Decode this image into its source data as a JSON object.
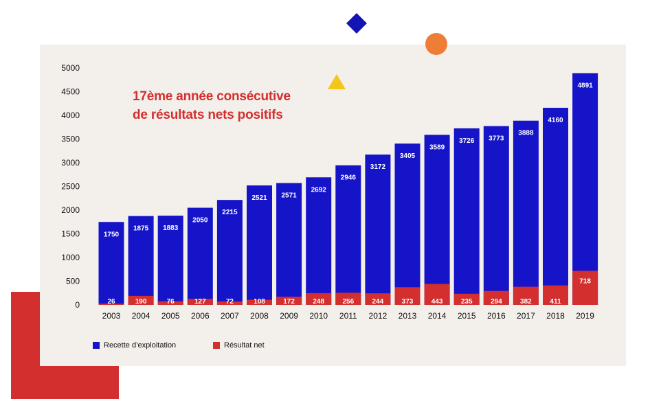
{
  "colors": {
    "revenue": "#1614c8",
    "net": "#d32f2f",
    "panel": "#f3efea",
    "red_block": "#d32f2f",
    "diamond": "#1414b4",
    "circle": "#ee7d37",
    "triangle": "#f5c518",
    "headline": "#d32f2f"
  },
  "headline": {
    "line1": "17ème année consécutive",
    "line2": "de résultats nets positifs"
  },
  "chart_data": {
    "type": "bar",
    "grid": false,
    "legend_position": "bottom-left",
    "ylim": [
      0,
      5000
    ],
    "yticks": [
      "0",
      "500",
      "1000",
      "1500",
      "2000",
      "2500",
      "3000",
      "3500",
      "4000",
      "4500",
      "5000"
    ],
    "categories": [
      "2003",
      "2004",
      "2005",
      "2006",
      "2007",
      "2008",
      "2009",
      "2010",
      "2011",
      "2012",
      "2013",
      "2014",
      "2015",
      "2016",
      "2017",
      "2018",
      "2019"
    ],
    "series": [
      {
        "name": "Recette d'exploitation",
        "values": [
          1750,
          1875,
          1883,
          2050,
          2215,
          2521,
          2571,
          2692,
          2946,
          3172,
          3405,
          3589,
          3726,
          3773,
          3888,
          4160,
          4891
        ],
        "labels": [
          "1750",
          "1875",
          "1883",
          "2050",
          "2215",
          "2521",
          "2571",
          "2692",
          "2946",
          "3172",
          "3405",
          "3589",
          "3726",
          "3773",
          "3888",
          "4160",
          "4891"
        ]
      },
      {
        "name": "Résultat net",
        "values": [
          26,
          190,
          76,
          127,
          72,
          108,
          172,
          248,
          256,
          244,
          373,
          443,
          235,
          294,
          382,
          411,
          718
        ],
        "labels": [
          "26",
          "190",
          "76",
          "127",
          "72",
          "108",
          "172",
          "248",
          "256",
          "244",
          "373",
          "443",
          "235",
          "294",
          "382",
          "411",
          "718"
        ]
      }
    ]
  },
  "legend": {
    "revenue_label": "Recette d’exploitation",
    "net_label": "Résultat net"
  }
}
